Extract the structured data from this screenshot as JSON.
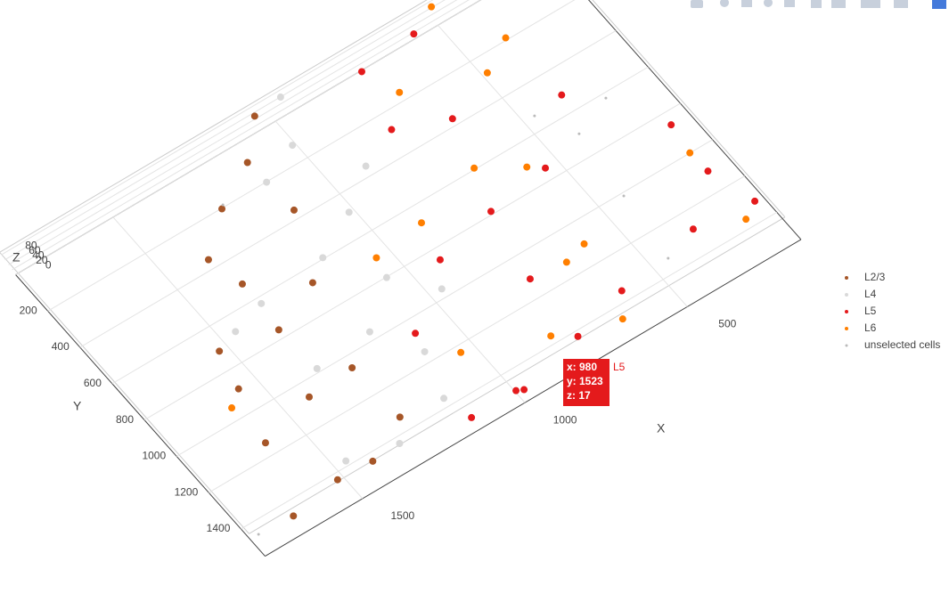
{
  "chart_data": {
    "type": "scatter3d",
    "xlabel": "X",
    "ylabel": "Y",
    "zlabel": "Z",
    "xlim": [
      150,
      1800
    ],
    "ylim": [
      0,
      1550
    ],
    "zlim": [
      0,
      90
    ],
    "xticks": [
      500,
      1000,
      1500
    ],
    "yticks": [
      200,
      400,
      600,
      800,
      1000,
      1200,
      1400
    ],
    "zticks": [
      0,
      20,
      40,
      60,
      80
    ],
    "grid": true,
    "legend": "right",
    "series": [
      {
        "name": "L2/3",
        "color": "#a65628",
        "size": 4,
        "x": [
          1039,
          1270,
          1362,
          1527,
          1370,
          1427,
          1597,
          1517,
          1413,
          1126,
          1136,
          1386,
          1218,
          1289,
          1671,
          1555,
          1279
        ],
        "y": [
          27,
          273,
          569,
          737,
          806,
          1088,
          1154,
          1435,
          1447,
          425,
          169,
          396,
          721,
          1087,
          1469,
          904,
          1343
        ],
        "z": [
          70,
          55,
          40,
          20,
          35,
          15,
          10,
          5,
          8,
          50,
          62,
          30,
          45,
          25,
          3,
          12,
          6
        ]
      },
      {
        "name": "L4",
        "color": "#d9d9d9",
        "size": 4,
        "x": [
          1014,
          1018,
          1058,
          1113,
          1189,
          1152,
          1132,
          1157,
          1327,
          1361,
          953,
          902,
          966,
          1358,
          1467,
          1460
        ],
        "y": [
          200,
          540,
          841,
          1175,
          996,
          643,
          272,
          1374,
          1439,
          1011,
          20,
          417,
          987,
          671,
          1390,
          711
        ],
        "z": [
          60,
          42,
          30,
          18,
          26,
          38,
          55,
          10,
          7,
          22,
          75,
          48,
          20,
          33,
          9,
          28
        ]
      },
      {
        "name": "L5",
        "color": "#e41a1c",
        "size": 4,
        "x": [
          571,
          643,
          730,
          770,
          775,
          997,
          1135,
          785,
          918,
          605,
          542,
          743,
          1099,
          210,
          176,
          218,
          350,
          379,
          980
        ],
        "y": [
          80,
          446,
          844,
          1146,
          1434,
          1494,
          1495,
          345,
          891,
          1368,
          797,
          95,
          1091,
          903,
          1332,
          1140,
          1295,
          578,
          1523
        ],
        "z": [
          78,
          60,
          45,
          25,
          8,
          5,
          4,
          52,
          30,
          12,
          40,
          70,
          20,
          35,
          15,
          28,
          10,
          48,
          17
        ]
      },
      {
        "name": "L6",
        "color": "#ff7f00",
        "size": 4,
        "x": [
          487,
          491,
          578,
          598,
          653,
          686,
          703,
          829,
          890,
          391,
          666,
          222,
          226,
          1044,
          1041,
          1604
        ],
        "y": [
          22,
          361,
          759,
          1131,
          1464,
          645,
          235,
          1377,
          724,
          270,
          1157,
          1038,
          1377,
          758,
          1251,
          975
        ],
        "z": [
          80,
          65,
          44,
          22,
          6,
          40,
          58,
          10,
          35,
          62,
          20,
          30,
          14,
          38,
          15,
          25
        ]
      },
      {
        "name": "unselected cells",
        "color": "#bbbbbb",
        "size": 1.5,
        "x": [
          409,
          430,
          467,
          452,
          291,
          1256,
          1774
        ],
        "y": [
          694,
          1014,
          534,
          1334,
          622,
          190,
          1457
        ],
        "z": [
          0,
          0,
          0,
          0,
          0,
          0,
          0
        ]
      }
    ],
    "hover": {
      "lines": [
        "x: 980",
        "y: 1523",
        "z: 17"
      ],
      "name": "L5"
    }
  }
}
